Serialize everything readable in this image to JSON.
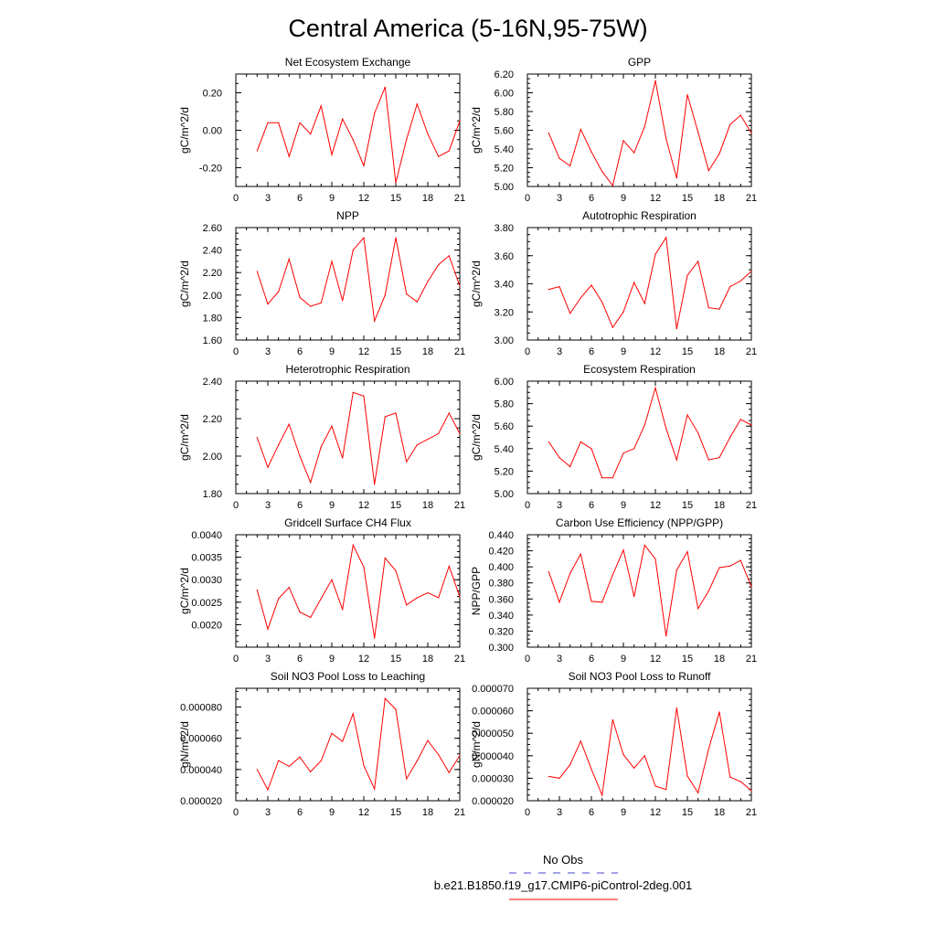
{
  "figure": {
    "title": "Central America (5-16N,95-75W)",
    "line_color": "#ff0000",
    "obs_color": "#4444cc"
  },
  "legend": {
    "obs_label": "No Obs",
    "model_label": "b.e21.B1850.f19_g17.CMIP6-piControl-2deg.001"
  },
  "chart_data": [
    {
      "type": "line",
      "title": "Net Ecosystem Exchange",
      "ylabel": "gC/m^2/d",
      "xlim": [
        0,
        21
      ],
      "ylim": [
        -0.3,
        0.3
      ],
      "xticks": [
        0,
        3,
        6,
        9,
        12,
        15,
        18,
        21
      ],
      "yticks": [
        -0.2,
        0.0,
        0.2
      ],
      "yticklabels": [
        "-0.20",
        "0.00",
        "0.20"
      ],
      "x": [
        2,
        3,
        4,
        5,
        6,
        7,
        8,
        9,
        10,
        11,
        12,
        13,
        14,
        15,
        16,
        17,
        18,
        19,
        20,
        21
      ],
      "values": [
        -0.11,
        0.04,
        0.04,
        -0.14,
        0.04,
        -0.02,
        0.13,
        -0.13,
        0.06,
        -0.05,
        -0.19,
        0.09,
        0.23,
        -0.28,
        -0.05,
        0.14,
        -0.02,
        -0.14,
        -0.11,
        0.05
      ]
    },
    {
      "type": "line",
      "title": "GPP",
      "ylabel": "gC/m^2/d",
      "xlim": [
        0,
        21
      ],
      "ylim": [
        5.0,
        6.2
      ],
      "xticks": [
        0,
        3,
        6,
        9,
        12,
        15,
        18,
        21
      ],
      "yticks": [
        5.0,
        5.2,
        5.4,
        5.6,
        5.8,
        6.0,
        6.2
      ],
      "yticklabels": [
        "5.00",
        "5.20",
        "5.40",
        "5.60",
        "5.80",
        "6.00",
        "6.20"
      ],
      "x": [
        2,
        3,
        4,
        5,
        6,
        7,
        8,
        9,
        10,
        11,
        12,
        13,
        14,
        15,
        16,
        17,
        18,
        19,
        20,
        21
      ],
      "values": [
        5.57,
        5.3,
        5.22,
        5.61,
        5.37,
        5.16,
        5.01,
        5.49,
        5.36,
        5.64,
        6.13,
        5.51,
        5.09,
        5.98,
        5.58,
        5.17,
        5.35,
        5.66,
        5.76,
        5.57
      ]
    },
    {
      "type": "line",
      "title": "NPP",
      "ylabel": "gC/m^2/d",
      "xlim": [
        0,
        21
      ],
      "ylim": [
        1.6,
        2.6
      ],
      "xticks": [
        0,
        3,
        6,
        9,
        12,
        15,
        18,
        21
      ],
      "yticks": [
        1.6,
        1.8,
        2.0,
        2.2,
        2.4,
        2.6
      ],
      "yticklabels": [
        "1.60",
        "1.80",
        "2.00",
        "2.20",
        "2.40",
        "2.60"
      ],
      "x": [
        2,
        3,
        4,
        5,
        6,
        7,
        8,
        9,
        10,
        11,
        12,
        13,
        14,
        15,
        16,
        17,
        18,
        19,
        20,
        21
      ],
      "values": [
        2.21,
        1.92,
        2.03,
        2.32,
        1.98,
        1.9,
        1.93,
        2.3,
        1.95,
        2.4,
        2.51,
        1.77,
        2.0,
        2.51,
        2.01,
        1.94,
        2.12,
        2.27,
        2.35,
        2.08
      ]
    },
    {
      "type": "line",
      "title": "Autotrophic Respiration",
      "ylabel": "gC/m^2/d",
      "xlim": [
        0,
        21
      ],
      "ylim": [
        3.0,
        3.8
      ],
      "xticks": [
        0,
        3,
        6,
        9,
        12,
        15,
        18,
        21
      ],
      "yticks": [
        3.0,
        3.2,
        3.4,
        3.6,
        3.8
      ],
      "yticklabels": [
        "3.00",
        "3.20",
        "3.40",
        "3.60",
        "3.80"
      ],
      "x": [
        2,
        3,
        4,
        5,
        6,
        7,
        8,
        9,
        10,
        11,
        12,
        13,
        14,
        15,
        16,
        17,
        18,
        19,
        20,
        21
      ],
      "values": [
        3.36,
        3.38,
        3.19,
        3.3,
        3.39,
        3.27,
        3.09,
        3.2,
        3.41,
        3.26,
        3.61,
        3.73,
        3.08,
        3.46,
        3.56,
        3.23,
        3.22,
        3.38,
        3.42,
        3.49
      ]
    },
    {
      "type": "line",
      "title": "Heterotrophic Respiration",
      "ylabel": "gC/m^2/d",
      "xlim": [
        0,
        21
      ],
      "ylim": [
        1.8,
        2.4
      ],
      "xticks": [
        0,
        3,
        6,
        9,
        12,
        15,
        18,
        21
      ],
      "yticks": [
        1.8,
        2.0,
        2.2,
        2.4
      ],
      "yticklabels": [
        "1.80",
        "2.00",
        "2.20",
        "2.40"
      ],
      "x": [
        2,
        3,
        4,
        5,
        6,
        7,
        8,
        9,
        10,
        11,
        12,
        13,
        14,
        15,
        16,
        17,
        18,
        19,
        20,
        21
      ],
      "values": [
        2.1,
        1.94,
        2.06,
        2.17,
        2.0,
        1.86,
        2.05,
        2.16,
        1.99,
        2.34,
        2.32,
        1.85,
        2.21,
        2.23,
        1.97,
        2.06,
        2.09,
        2.12,
        2.23,
        2.12
      ]
    },
    {
      "type": "line",
      "title": "Ecosystem Respiration",
      "ylabel": "gC/m^2/d",
      "xlim": [
        0,
        21
      ],
      "ylim": [
        5.0,
        6.0
      ],
      "xticks": [
        0,
        3,
        6,
        9,
        12,
        15,
        18,
        21
      ],
      "yticks": [
        5.0,
        5.2,
        5.4,
        5.6,
        5.8,
        6.0
      ],
      "yticklabels": [
        "5.00",
        "5.20",
        "5.40",
        "5.60",
        "5.80",
        "6.00"
      ],
      "x": [
        2,
        3,
        4,
        5,
        6,
        7,
        8,
        9,
        10,
        11,
        12,
        13,
        14,
        15,
        16,
        17,
        18,
        19,
        20,
        21
      ],
      "values": [
        5.46,
        5.32,
        5.24,
        5.46,
        5.4,
        5.14,
        5.14,
        5.36,
        5.4,
        5.61,
        5.94,
        5.58,
        5.3,
        5.7,
        5.54,
        5.3,
        5.32,
        5.5,
        5.66,
        5.61
      ]
    },
    {
      "type": "line",
      "title": "Gridcell Surface CH4 Flux",
      "ylabel": "gC/m^2/d",
      "xlim": [
        0,
        21
      ],
      "ylim": [
        0.0015,
        0.004
      ],
      "xticks": [
        0,
        3,
        6,
        9,
        12,
        15,
        18,
        21
      ],
      "yticks": [
        0.002,
        0.0025,
        0.003,
        0.0035,
        0.004
      ],
      "yticklabels": [
        "0.0020",
        "0.0025",
        "0.0030",
        "0.0035",
        "0.0040"
      ],
      "x": [
        2,
        3,
        4,
        5,
        6,
        7,
        8,
        9,
        10,
        11,
        12,
        13,
        14,
        15,
        16,
        17,
        18,
        19,
        20,
        21
      ],
      "values": [
        0.00277,
        0.0019,
        0.00258,
        0.00283,
        0.00228,
        0.00216,
        0.00258,
        0.003,
        0.00234,
        0.00377,
        0.00328,
        0.0017,
        0.00348,
        0.0032,
        0.00244,
        0.0026,
        0.00271,
        0.0026,
        0.0033,
        0.00262
      ]
    },
    {
      "type": "line",
      "title": "Carbon Use Efficiency (NPP/GPP)",
      "ylabel": "NPP/GPP",
      "xlim": [
        0,
        21
      ],
      "ylim": [
        0.3,
        0.44
      ],
      "xticks": [
        0,
        3,
        6,
        9,
        12,
        15,
        18,
        21
      ],
      "yticks": [
        0.3,
        0.32,
        0.34,
        0.36,
        0.38,
        0.4,
        0.42,
        0.44
      ],
      "yticklabels": [
        "0.300",
        "0.320",
        "0.340",
        "0.360",
        "0.380",
        "0.400",
        "0.420",
        "0.440"
      ],
      "x": [
        2,
        3,
        4,
        5,
        6,
        7,
        8,
        9,
        10,
        11,
        12,
        13,
        14,
        15,
        16,
        17,
        18,
        19,
        20,
        21
      ],
      "values": [
        0.394,
        0.356,
        0.392,
        0.416,
        0.357,
        0.356,
        0.39,
        0.421,
        0.363,
        0.427,
        0.41,
        0.314,
        0.396,
        0.419,
        0.348,
        0.37,
        0.399,
        0.401,
        0.408,
        0.375
      ]
    },
    {
      "type": "line",
      "title": "Soil NO3 Pool Loss to Leaching",
      "ylabel": "gN/m^2/d",
      "xlim": [
        0,
        21
      ],
      "ylim": [
        2e-05,
        9.2e-05
      ],
      "xticks": [
        0,
        3,
        6,
        9,
        12,
        15,
        18,
        21
      ],
      "yticks": [
        2e-05,
        4e-05,
        6e-05,
        8e-05
      ],
      "yticklabels": [
        "0.000020",
        "0.000040",
        "0.000060",
        "0.000080"
      ],
      "x": [
        2,
        3,
        4,
        5,
        6,
        7,
        8,
        9,
        10,
        11,
        12,
        13,
        14,
        15,
        16,
        17,
        18,
        19,
        20,
        21
      ],
      "values": [
        4e-05,
        2.7e-05,
        4.57e-05,
        4.2e-05,
        4.8e-05,
        3.85e-05,
        4.55e-05,
        6.32e-05,
        5.8e-05,
        7.57e-05,
        4.25e-05,
        2.75e-05,
        8.55e-05,
        7.85e-05,
        3.4e-05,
        4.55e-05,
        5.85e-05,
        4.95e-05,
        3.8e-05,
        4.9e-05
      ]
    },
    {
      "type": "line",
      "title": "Soil NO3 Pool Loss to Runoff",
      "ylabel": "gN/m^2/d",
      "xlim": [
        0,
        21
      ],
      "ylim": [
        2e-05,
        7e-05
      ],
      "xticks": [
        0,
        3,
        6,
        9,
        12,
        15,
        18,
        21
      ],
      "yticks": [
        2e-05,
        3e-05,
        4e-05,
        5e-05,
        6e-05,
        7e-05
      ],
      "yticklabels": [
        "0.000020",
        "0.000030",
        "0.000040",
        "0.000050",
        "0.000060",
        "0.000070"
      ],
      "x": [
        2,
        3,
        4,
        5,
        6,
        7,
        8,
        9,
        10,
        11,
        12,
        13,
        14,
        15,
        16,
        17,
        18,
        19,
        20,
        21
      ],
      "values": [
        3.08e-05,
        3e-05,
        3.6e-05,
        4.65e-05,
        3.4e-05,
        2.25e-05,
        5.6e-05,
        4.05e-05,
        3.45e-05,
        4e-05,
        2.65e-05,
        2.5e-05,
        6.12e-05,
        3.1e-05,
        2.35e-05,
        4.3e-05,
        5.95e-05,
        3.05e-05,
        2.85e-05,
        2.45e-05
      ]
    }
  ]
}
